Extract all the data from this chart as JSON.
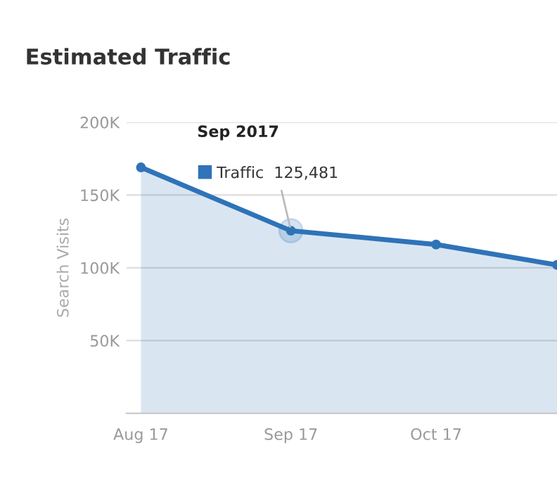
{
  "chart_data": {
    "type": "area",
    "title": "Estimated Traffic",
    "ylabel": "Search Visits",
    "x": [
      "2017-08-01",
      "2017-09-01",
      "2017-10-01",
      "2017-10-26"
    ],
    "series": [
      {
        "color": "#2f73b8",
        "values": [
          169000,
          125481,
          116000,
          102000
        ]
      }
    ],
    "xlim": [
      "2017-07-29",
      "2017-10-26"
    ],
    "xticks": [
      {
        "value": "2017-08-01",
        "label": "Aug 17"
      },
      {
        "value": "2017-09-01",
        "label": "Sep 17"
      },
      {
        "value": "2017-10-01",
        "label": "Oct 17"
      }
    ],
    "ylim": [
      0,
      200000
    ],
    "yticks": [
      {
        "value": 0,
        "label": null
      },
      {
        "value": 50000,
        "label": "50K"
      },
      {
        "value": 100000,
        "label": "100K"
      },
      {
        "value": 150000,
        "label": "150K"
      },
      {
        "value": 200000,
        "label": "200K"
      }
    ],
    "grid": "y",
    "marker": "circle",
    "annotations": [
      "Sep 2017",
      {
        "text": "Traffic  125,481",
        "x": "2017-09-01",
        "y": 125481
      }
    ]
  }
}
